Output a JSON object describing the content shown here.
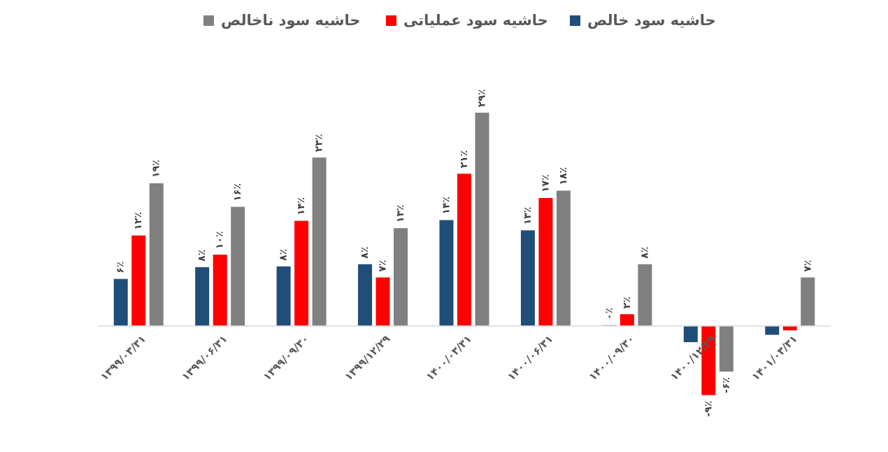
{
  "chart_data": {
    "type": "bar",
    "categories": [
      "۱۳۹۹/۰۳/۳۱",
      "۱۳۹۹/۰۶/۳۱",
      "۱۳۹۹/۰۹/۳۰",
      "۱۳۹۹/۱۲/۲۹",
      "۱۴۰۰/۰۳/۳۱",
      "۱۴۰۰/۰۶/۳۱",
      "۱۴۰۰/۰۹/۳۰",
      "۱۴۰۰/۱۲/۲۹",
      "۱۴۰۱/۰۳/۳۱"
    ],
    "series": [
      {
        "name": "حاشیه سود خالص",
        "color": "#1f4e79",
        "values": [
          6.4,
          8.0,
          8.1,
          8.4,
          14.4,
          13.0,
          0.1,
          -2.2,
          -1.2
        ],
        "value_labels": [
          "۶٪",
          "۸٪",
          "۸٪",
          "۸٪",
          "۱۴٪",
          "۱۳٪",
          "۰٪",
          null,
          null
        ]
      },
      {
        "name": "حاشیه سود عملیاتی",
        "color": "#ff0000",
        "values": [
          12.3,
          9.7,
          14.3,
          6.6,
          20.7,
          17.4,
          1.6,
          -9.4,
          -0.6
        ],
        "value_labels": [
          "۱۲٪",
          "۱۰٪",
          "۱۴٪",
          "۷٪",
          "۲۱٪",
          "۱۷٪",
          "۲٪",
          "-۹٪",
          null
        ]
      },
      {
        "name": "حاشیه سود ناخالص",
        "color": "#808080",
        "values": [
          19.4,
          16.2,
          22.9,
          13.3,
          29.0,
          18.4,
          8.4,
          -6.2,
          6.6
        ],
        "value_labels": [
          "۱۹٪",
          "۱۶٪",
          "۲۳٪",
          "۱۳٪",
          "۲۹٪",
          "۱۸٪",
          "۸٪",
          "-۶٪",
          "۷٪"
        ]
      }
    ],
    "ylim": [
      -10,
      35
    ],
    "legend": "top"
  }
}
